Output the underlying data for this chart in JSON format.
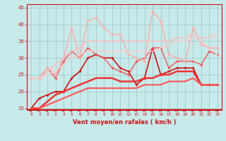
{
  "bg_color": "#c8eaea",
  "grid_color": "#a0cccc",
  "xlabel": "Vent moyen/en rafales ( km/h )",
  "xlabel_color": "#cc1111",
  "tick_color": "#cc1111",
  "axis_color": "#cc1111",
  "ylim": [
    14.5,
    46
  ],
  "xlim": [
    -0.5,
    23.5
  ],
  "yticks": [
    15,
    20,
    25,
    30,
    35,
    40,
    45
  ],
  "xticks": [
    0,
    1,
    2,
    3,
    4,
    5,
    6,
    7,
    8,
    9,
    10,
    11,
    12,
    13,
    14,
    15,
    16,
    17,
    18,
    19,
    20,
    21,
    22,
    23
  ],
  "lines": [
    {
      "x": [
        0,
        1,
        2,
        3,
        4,
        5,
        6,
        7,
        8,
        9,
        10,
        11,
        12,
        13,
        14,
        15,
        16,
        17,
        18,
        19,
        20,
        21,
        22,
        23
      ],
      "y": [
        15,
        18,
        19,
        20,
        20,
        24,
        26,
        30,
        31,
        30,
        30,
        27,
        26,
        22,
        24,
        33,
        25,
        26,
        27,
        27,
        27,
        22,
        22,
        22
      ],
      "color": "#cc1111",
      "lw": 1.2,
      "marker": "D",
      "ms": 2.0
    },
    {
      "x": [
        0,
        1,
        2,
        3,
        4,
        5,
        6,
        7,
        8,
        9,
        10,
        11,
        12,
        13,
        14,
        15,
        16,
        17,
        18,
        19,
        20,
        21,
        22,
        23
      ],
      "y": [
        15,
        15,
        17,
        19,
        20,
        21,
        22,
        23,
        24,
        24,
        24,
        23,
        23,
        23,
        24,
        24,
        25,
        25,
        26,
        26,
        26,
        22,
        22,
        22
      ],
      "color": "#ee3333",
      "lw": 1.8,
      "marker": null,
      "ms": 0
    },
    {
      "x": [
        0,
        1,
        2,
        3,
        4,
        5,
        6,
        7,
        8,
        9,
        10,
        11,
        12,
        13,
        14,
        15,
        16,
        17,
        18,
        19,
        20,
        21,
        22,
        23
      ],
      "y": [
        15,
        15,
        16,
        17,
        18,
        19,
        20,
        21,
        21,
        21,
        21,
        21,
        21,
        21,
        22,
        22,
        22,
        23,
        23,
        23,
        24,
        22,
        22,
        22
      ],
      "color": "#ff5555",
      "lw": 1.5,
      "marker": null,
      "ms": 0
    },
    {
      "x": [
        0,
        1,
        2,
        3,
        4,
        5,
        6,
        7,
        8,
        9,
        10,
        11,
        12,
        13,
        14,
        15,
        16,
        17,
        18,
        19,
        20,
        21,
        22,
        23
      ],
      "y": [
        24,
        24,
        27,
        24,
        29,
        32,
        30,
        33,
        31,
        30,
        27,
        26,
        25,
        29,
        30,
        33,
        33,
        27,
        29,
        29,
        29,
        28,
        32,
        31
      ],
      "color": "#ee5555",
      "lw": 1.0,
      "marker": "D",
      "ms": 2.0
    },
    {
      "x": [
        0,
        1,
        2,
        3,
        4,
        5,
        6,
        7,
        8,
        9,
        10,
        11,
        12,
        13,
        14,
        15,
        16,
        17,
        18,
        19,
        20,
        21,
        22,
        23
      ],
      "y": [
        24,
        24,
        27,
        25,
        30,
        39,
        30,
        41,
        42,
        39,
        37,
        37,
        31,
        30,
        29,
        44,
        41,
        31,
        30,
        29,
        39,
        34,
        33,
        33
      ],
      "color": "#ffaaaa",
      "lw": 1.0,
      "marker": "D",
      "ms": 2.0
    },
    {
      "x": [
        0,
        1,
        2,
        3,
        4,
        5,
        6,
        7,
        8,
        9,
        10,
        11,
        12,
        13,
        14,
        15,
        16,
        17,
        18,
        19,
        20,
        21,
        22,
        23
      ],
      "y": [
        24,
        24,
        26,
        28,
        30,
        32,
        33,
        35,
        35,
        35,
        35,
        35,
        35,
        35,
        35,
        35,
        35,
        35,
        36,
        36,
        37,
        36,
        36,
        37
      ],
      "color": "#ffbbbb",
      "lw": 1.1,
      "marker": null,
      "ms": 0
    },
    {
      "x": [
        0,
        1,
        2,
        3,
        4,
        5,
        6,
        7,
        8,
        9,
        10,
        11,
        12,
        13,
        14,
        15,
        16,
        17,
        18,
        19,
        20,
        21,
        22,
        23
      ],
      "y": [
        24,
        24,
        25,
        26,
        28,
        30,
        31,
        32,
        32,
        32,
        32,
        32,
        32,
        32,
        32,
        32,
        33,
        34,
        35,
        35,
        36,
        35,
        33,
        31
      ],
      "color": "#ffcccc",
      "lw": 1.1,
      "marker": null,
      "ms": 0
    }
  ],
  "arrow_color": "#cc1111",
  "bottom_line_y": 14.8
}
